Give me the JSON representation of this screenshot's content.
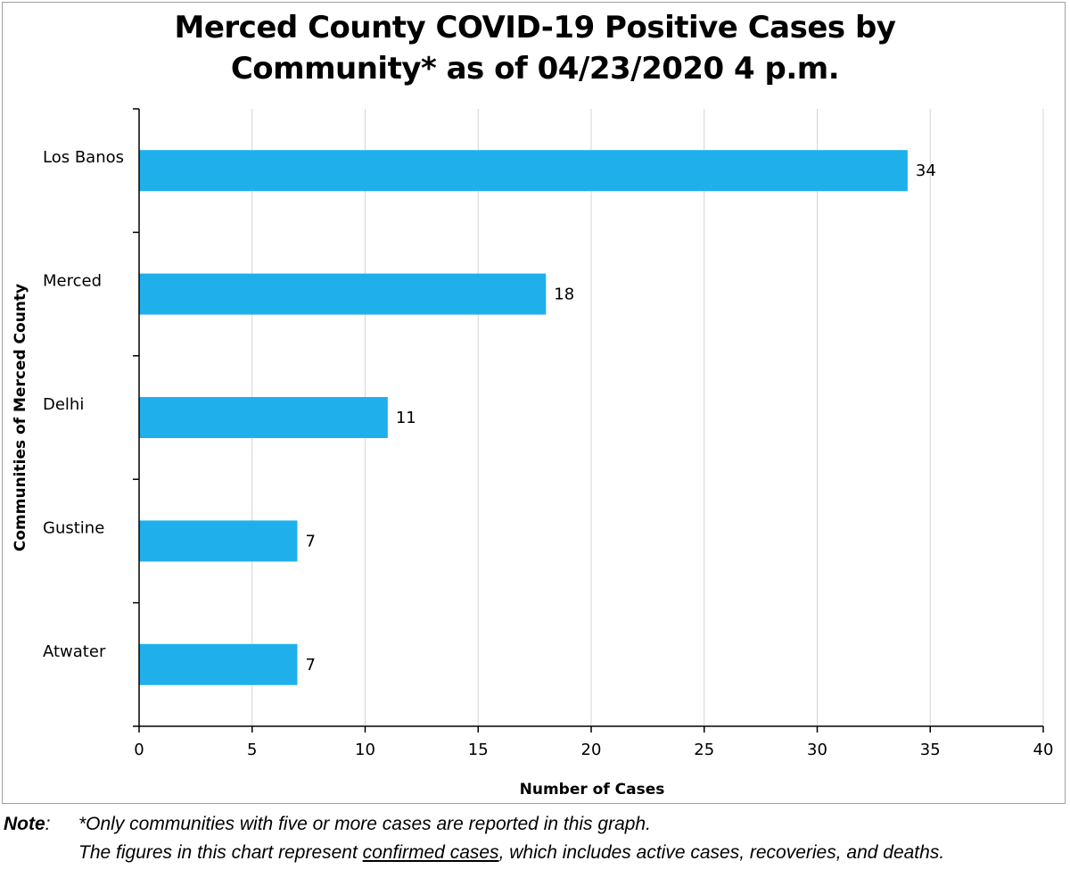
{
  "chart_data": {
    "type": "bar",
    "orientation": "horizontal",
    "title": "Merced County COVID-19 Positive Cases by Community* as of 04/23/2020 4 p.m.",
    "title_lines": [
      "Merced County COVID-19 Positive Cases by",
      "Community* as of 04/23/2020 4 p.m."
    ],
    "xlabel": "Number of Cases",
    "ylabel": "Communities of Merced County",
    "categories": [
      "Los Banos",
      "Merced",
      "Delhi",
      "Gustine",
      "Atwater"
    ],
    "values": [
      34,
      18,
      11,
      7,
      7
    ],
    "xlim": [
      0,
      40
    ],
    "x_ticks": [
      0,
      5,
      10,
      15,
      20,
      25,
      30,
      35,
      40
    ],
    "bar_color": "#1fb0ec",
    "grid": "vertical",
    "legend": "none"
  },
  "note": {
    "label": "Note",
    "colon": ":",
    "line1": "*Only communities with five or more cases are reported in this graph.",
    "line2_before": "The figures in this chart represent ",
    "line2_underlined": "confirmed cases",
    "line2_after": ", which includes active cases, recoveries, and deaths."
  }
}
